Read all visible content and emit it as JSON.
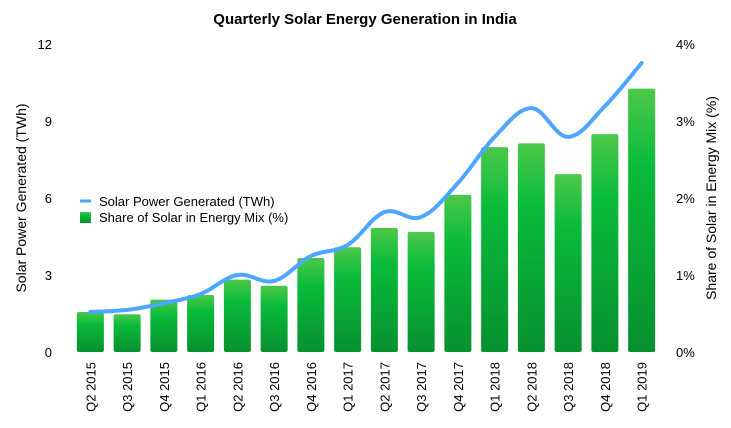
{
  "chart_data": {
    "type": "bar+line",
    "title": "Quarterly Solar Energy Generation in India",
    "categories": [
      "Q2 2015",
      "Q3 2015",
      "Q4 2015",
      "Q1 2016",
      "Q2 2016",
      "Q3 2016",
      "Q4 2016",
      "Q1 2017",
      "Q2 2017",
      "Q3 2017",
      "Q4 2017",
      "Q1 2018",
      "Q2 2018",
      "Q3 2018",
      "Q4 2018",
      "Q1 2019"
    ],
    "ylabel_left": "Solar Power Generated (TWh)",
    "ylabel_right": "Share of Solar in Energy Mix (%)",
    "ylim_left": [
      0,
      12
    ],
    "ylim_right": [
      0,
      4
    ],
    "yticks_left": [
      "0",
      "3",
      "6",
      "9",
      "12"
    ],
    "yticks_right": [
      "0%",
      "1%",
      "2%",
      "3%",
      "4%"
    ],
    "grid": false,
    "legend_placement": "left-middle",
    "series": [
      {
        "name": "Solar Power Generated (TWh)",
        "type": "line",
        "axis": "left",
        "color": "#4da6ff",
        "values": [
          1.56,
          1.64,
          1.9,
          2.26,
          3.0,
          2.77,
          3.74,
          4.17,
          5.45,
          5.26,
          6.58,
          8.38,
          9.5,
          8.38,
          9.58,
          11.26
        ]
      },
      {
        "name": "Share of Solar in Energy Mix (%)",
        "type": "bar",
        "axis": "right",
        "color": "#0cb83a",
        "values": [
          0.52,
          0.49,
          0.68,
          0.74,
          0.94,
          0.86,
          1.22,
          1.36,
          1.61,
          1.56,
          2.04,
          2.66,
          2.71,
          2.31,
          2.83,
          3.42
        ]
      }
    ]
  }
}
